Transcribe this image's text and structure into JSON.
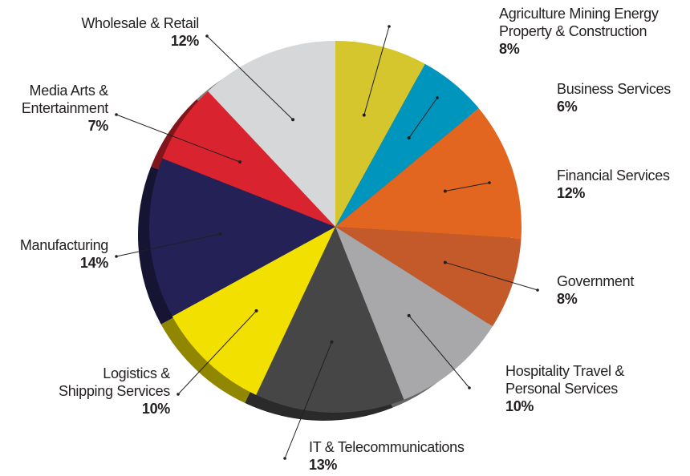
{
  "chart_data": {
    "type": "pie",
    "categories": [
      "Agriculture Mining Energy\nProperty & Construction",
      "Business Services",
      "Financial Services",
      "Government",
      "Hospitality Travel &\nPersonal Services",
      "IT & Telecommunications",
      "Logistics &\nShipping Services",
      "Manufacturing",
      "Media Arts &\nEntertainment",
      "Wholesale & Retail"
    ],
    "values": [
      8,
      6,
      12,
      8,
      10,
      13,
      10,
      14,
      7,
      12
    ],
    "value_labels": [
      "8%",
      "6%",
      "12%",
      "8%",
      "10%",
      "13%",
      "10%",
      "14%",
      "7%",
      "12%"
    ],
    "colors": [
      "#d4c62c",
      "#0095bd",
      "#e2661f",
      "#c45a2a",
      "#a8a8aa",
      "#464646",
      "#f2e000",
      "#232155",
      "#d9232e",
      "#d6d7d9"
    ]
  }
}
